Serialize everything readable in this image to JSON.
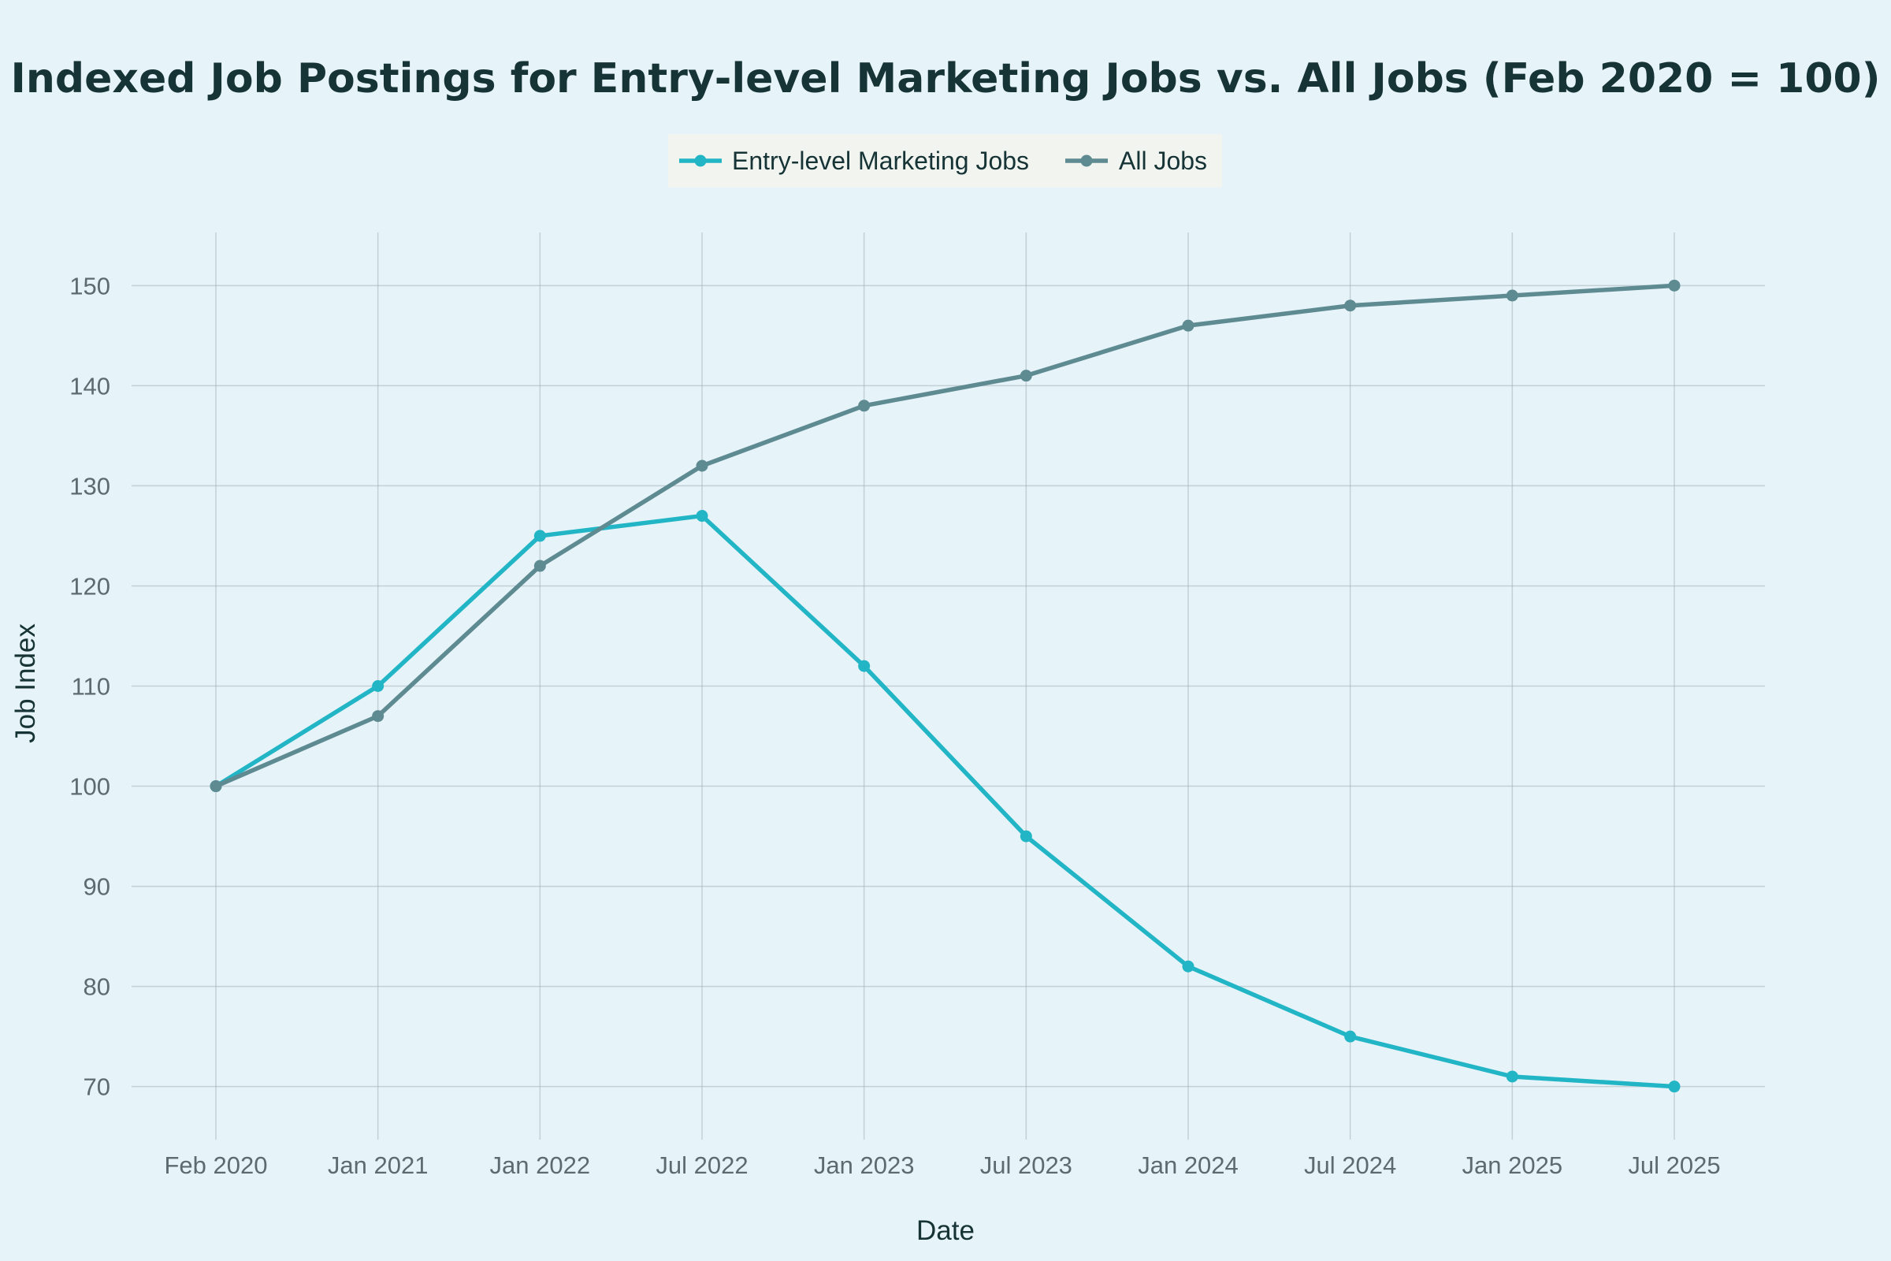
{
  "chart_data": {
    "type": "line",
    "title": "Indexed Job Postings for Entry-level Marketing Jobs vs. All Jobs (Feb 2020 = 100)",
    "xlabel": "Date",
    "ylabel": "Job Index",
    "x": [
      "Feb 2020",
      "Jan 2021",
      "Jan 2022",
      "Jul 2022",
      "Jan 2023",
      "Jul 2023",
      "Jan 2024",
      "Jul 2024",
      "Jan 2025",
      "Jul 2025"
    ],
    "yticks": [
      70,
      80,
      90,
      100,
      110,
      120,
      130,
      140,
      150
    ],
    "ylim": [
      64.7,
      155.3
    ],
    "grid": true,
    "legend_position": "top-center",
    "series": [
      {
        "name": "Entry-level Marketing Jobs",
        "color": "#22b5c6",
        "values": [
          100,
          110,
          125,
          127,
          112,
          95,
          82,
          75,
          71,
          70
        ]
      },
      {
        "name": "All Jobs",
        "color": "#5e8a91",
        "values": [
          100,
          107,
          122,
          132,
          138,
          141,
          146,
          148,
          149,
          150
        ]
      }
    ]
  }
}
